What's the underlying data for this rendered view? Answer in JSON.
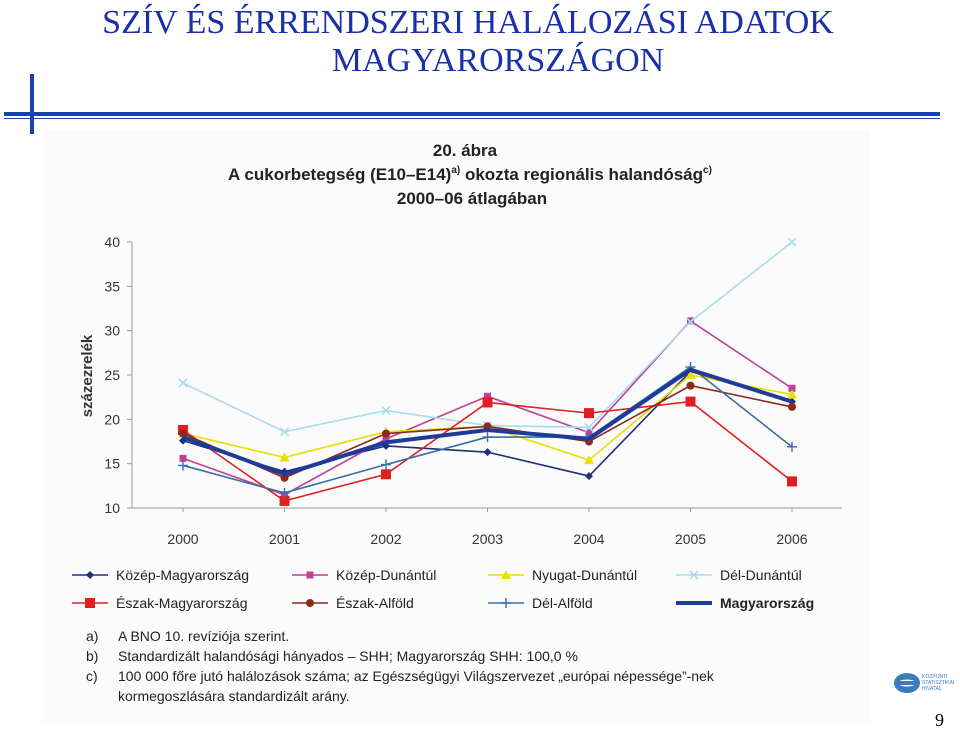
{
  "slide": {
    "title_line1": "SZÍV ÉS ÉRRENDSZERI HALÁLOZÁSI ADATOK",
    "title_line2": "MAGYARORSZÁGON",
    "page_number": "9",
    "logo_text": "KÖZPONTI STATISZTIKAI HIVATAL"
  },
  "chart_data": {
    "type": "line",
    "figure_label": "20. ábra",
    "title_line1": "A cukorbetegség (E10–E14)",
    "title_sup1": "a)",
    "title_mid": " okozta regionális halandóság",
    "title_sup2": "c)",
    "title_line2": "2000–06 átlagában",
    "ylabel": "százezrelék",
    "xlabel": "",
    "ylim": [
      10,
      40
    ],
    "yticks": [
      10,
      15,
      20,
      25,
      30,
      35,
      40
    ],
    "x": [
      "2000",
      "2001",
      "2002",
      "2003",
      "2004",
      "2005",
      "2006"
    ],
    "grid": false,
    "legend_position": "bottom",
    "series": [
      {
        "name": "Közép-Magyarország",
        "color": "#1f2f7a",
        "marker": "diamond",
        "values": [
          17.6,
          14.1,
          17.0,
          16.3,
          13.6,
          25.4,
          22.0
        ]
      },
      {
        "name": "Közép-Dunántúl",
        "color": "#c0409a",
        "marker": "square",
        "values": [
          15.6,
          11.5,
          17.8,
          22.6,
          18.5,
          31.1,
          23.5
        ]
      },
      {
        "name": "Nyugat-Dunántúl",
        "color": "#e8e000",
        "marker": "triangle",
        "values": [
          18.4,
          15.7,
          18.6,
          19.2,
          15.4,
          25.0,
          22.8
        ]
      },
      {
        "name": "Dél-Dunántúl",
        "color": "#a9dcee",
        "marker": "x",
        "values": [
          24.1,
          18.6,
          21.0,
          19.3,
          19.1,
          31.0,
          40.0
        ]
      },
      {
        "name": "Észak-Magyarország",
        "color": "#e02020",
        "marker": "bigsquare",
        "values": [
          18.8,
          10.8,
          13.8,
          21.9,
          20.7,
          22.0,
          13.0
        ]
      },
      {
        "name": "Észak-Alföld",
        "color": "#8a2a1c",
        "marker": "circle",
        "values": [
          18.4,
          13.4,
          18.4,
          19.2,
          17.5,
          23.8,
          21.4
        ]
      },
      {
        "name": "Dél-Alföld",
        "color": "#3a6ea8",
        "marker": "plus",
        "values": [
          14.8,
          11.7,
          14.9,
          18.0,
          18.0,
          25.9,
          16.9
        ]
      },
      {
        "name": "Magyarország",
        "color": "#1e3c96",
        "marker": "none",
        "values": [
          18.0,
          13.8,
          17.4,
          18.8,
          17.8,
          25.6,
          22.0
        ]
      }
    ]
  },
  "notes": [
    {
      "label": "a)",
      "text": "A BNO 10. revíziója szerint."
    },
    {
      "label": "b)",
      "text": "Standardizált halandósági hányados – SHH; Magyarország SHH: 100,0 %"
    },
    {
      "label": "c)",
      "text": "100 000 főre jutó halálozások száma; az Egészségügyi Világszervezet „európai népessége”-nek"
    },
    {
      "label": "",
      "text": "kormegoszlására standardizált arány."
    }
  ]
}
